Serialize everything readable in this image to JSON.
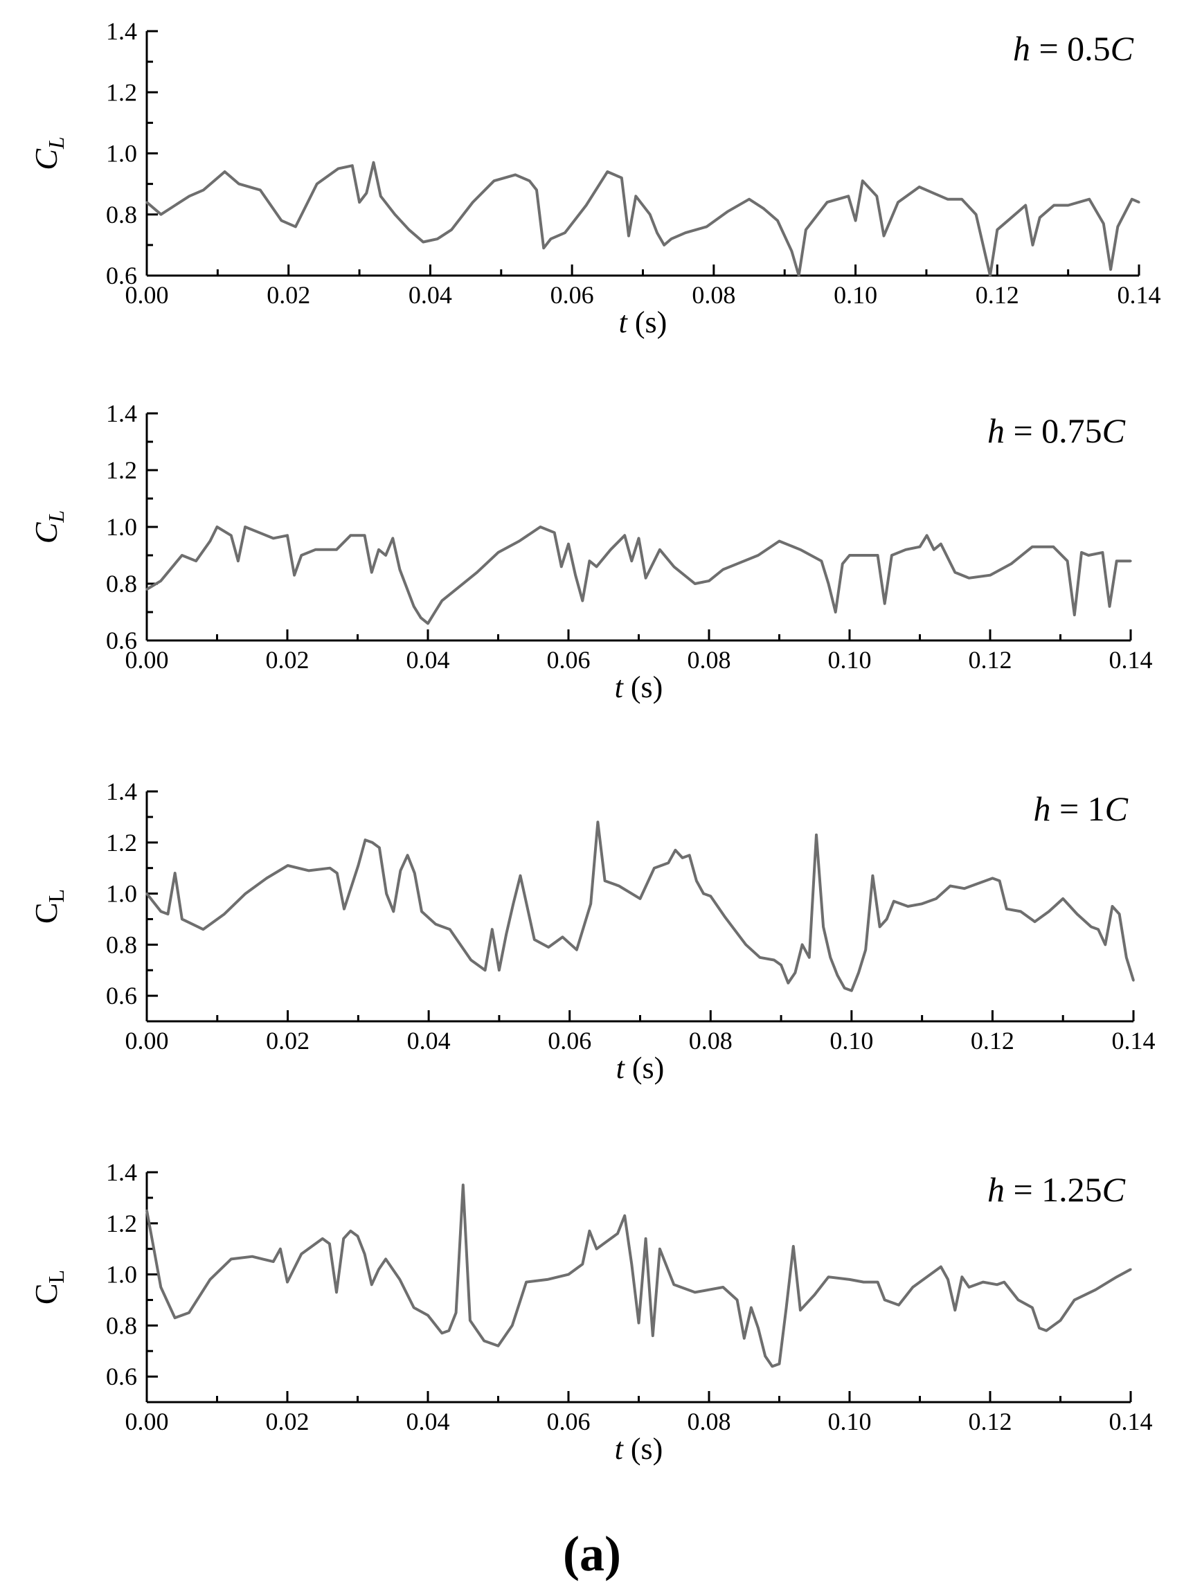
{
  "figure": {
    "panel_label": "(a)",
    "line_color": "#6e6e6e",
    "axis_color": "#000000",
    "background": "#ffffff"
  },
  "chart_data": [
    {
      "type": "line",
      "title": "",
      "annotation": {
        "parts": [
          {
            "text": "h",
            "italic": true
          },
          {
            "text": " = 0.5",
            "italic": false
          },
          {
            "text": "C",
            "italic": true
          }
        ],
        "placement": "top-right"
      },
      "ylabel": {
        "main": "C",
        "sub": "L",
        "italic": true
      },
      "xlabel": {
        "main": "t",
        "rest": " (s)"
      },
      "xlim": [
        0,
        0.14
      ],
      "ylim": [
        0.6,
        1.4
      ],
      "xticks": [
        0.0,
        0.02,
        0.04,
        0.06,
        0.08,
        0.1,
        0.12,
        0.14
      ],
      "xtick_labels": [
        "0.00",
        "0.02",
        "0.04",
        "0.06",
        "0.08",
        "0.10",
        "0.12",
        "0.14"
      ],
      "yticks": [
        0.6,
        0.8,
        1.0,
        1.2,
        1.4
      ],
      "ytick_labels": [
        "0.6",
        "0.8",
        "1.0",
        "1.2",
        "1.4"
      ],
      "grid": false,
      "series": [
        {
          "x": [
            0.0,
            0.002,
            0.004,
            0.006,
            0.008,
            0.011,
            0.013,
            0.016,
            0.019,
            0.021,
            0.024,
            0.027,
            0.029,
            0.03,
            0.031,
            0.032,
            0.033,
            0.035,
            0.037,
            0.039,
            0.041,
            0.043,
            0.046,
            0.049,
            0.052,
            0.054,
            0.055,
            0.056,
            0.057,
            0.059,
            0.062,
            0.065,
            0.067,
            0.068,
            0.069,
            0.071,
            0.072,
            0.073,
            0.074,
            0.076,
            0.079,
            0.082,
            0.085,
            0.087,
            0.089,
            0.091,
            0.092,
            0.093,
            0.096,
            0.099,
            0.1,
            0.101,
            0.103,
            0.104,
            0.106,
            0.109,
            0.111,
            0.113,
            0.115,
            0.117,
            0.119,
            0.12,
            0.122,
            0.124,
            0.125,
            0.126,
            0.128,
            0.13,
            0.133,
            0.135,
            0.136,
            0.137,
            0.139,
            0.14
          ],
          "y": [
            0.84,
            0.8,
            0.83,
            0.86,
            0.88,
            0.94,
            0.9,
            0.88,
            0.78,
            0.76,
            0.9,
            0.95,
            0.96,
            0.84,
            0.87,
            0.97,
            0.86,
            0.8,
            0.75,
            0.71,
            0.72,
            0.75,
            0.84,
            0.91,
            0.93,
            0.91,
            0.88,
            0.69,
            0.72,
            0.74,
            0.83,
            0.94,
            0.92,
            0.73,
            0.86,
            0.8,
            0.74,
            0.7,
            0.72,
            0.74,
            0.76,
            0.81,
            0.85,
            0.82,
            0.78,
            0.68,
            0.6,
            0.75,
            0.84,
            0.86,
            0.78,
            0.91,
            0.86,
            0.73,
            0.84,
            0.89,
            0.87,
            0.85,
            0.85,
            0.8,
            0.6,
            0.75,
            0.79,
            0.83,
            0.7,
            0.79,
            0.83,
            0.83,
            0.85,
            0.77,
            0.62,
            0.76,
            0.85,
            0.84
          ]
        }
      ]
    },
    {
      "type": "line",
      "title": "",
      "annotation": {
        "parts": [
          {
            "text": "h",
            "italic": true
          },
          {
            "text": " = 0.75",
            "italic": false
          },
          {
            "text": "C",
            "italic": true
          }
        ],
        "placement": "top-right"
      },
      "ylabel": {
        "main": "C",
        "sub": "L",
        "italic": true
      },
      "xlabel": {
        "main": "t",
        "rest": " (s)"
      },
      "xlim": [
        0,
        0.14
      ],
      "ylim": [
        0.6,
        1.4
      ],
      "xticks": [
        0.0,
        0.02,
        0.04,
        0.06,
        0.08,
        0.1,
        0.12,
        0.14
      ],
      "xtick_labels": [
        "0.00",
        "0.02",
        "0.04",
        "0.06",
        "0.08",
        "0.10",
        "0.12",
        "0.14"
      ],
      "yticks": [
        0.6,
        0.8,
        1.0,
        1.2,
        1.4
      ],
      "ytick_labels": [
        "0.6",
        "0.8",
        "1.0",
        "1.2",
        "1.4"
      ],
      "grid": false,
      "series": [
        {
          "x": [
            0.0,
            0.002,
            0.005,
            0.007,
            0.009,
            0.01,
            0.012,
            0.013,
            0.014,
            0.016,
            0.018,
            0.02,
            0.021,
            0.022,
            0.024,
            0.027,
            0.029,
            0.031,
            0.032,
            0.033,
            0.034,
            0.035,
            0.036,
            0.038,
            0.039,
            0.04,
            0.041,
            0.042,
            0.044,
            0.047,
            0.05,
            0.053,
            0.056,
            0.058,
            0.059,
            0.06,
            0.061,
            0.062,
            0.063,
            0.064,
            0.066,
            0.068,
            0.069,
            0.07,
            0.071,
            0.073,
            0.075,
            0.078,
            0.08,
            0.082,
            0.084,
            0.087,
            0.09,
            0.093,
            0.096,
            0.097,
            0.098,
            0.099,
            0.1,
            0.102,
            0.104,
            0.105,
            0.106,
            0.108,
            0.11,
            0.111,
            0.112,
            0.113,
            0.115,
            0.117,
            0.12,
            0.123,
            0.126,
            0.129,
            0.131,
            0.132,
            0.133,
            0.134,
            0.136,
            0.137,
            0.138,
            0.14
          ],
          "y": [
            0.78,
            0.81,
            0.9,
            0.88,
            0.95,
            1.0,
            0.97,
            0.88,
            1.0,
            0.98,
            0.96,
            0.97,
            0.83,
            0.9,
            0.92,
            0.92,
            0.97,
            0.97,
            0.84,
            0.92,
            0.9,
            0.96,
            0.85,
            0.72,
            0.68,
            0.66,
            0.7,
            0.74,
            0.78,
            0.84,
            0.91,
            0.95,
            1.0,
            0.98,
            0.86,
            0.94,
            0.83,
            0.74,
            0.88,
            0.86,
            0.92,
            0.97,
            0.88,
            0.96,
            0.82,
            0.92,
            0.86,
            0.8,
            0.81,
            0.85,
            0.87,
            0.9,
            0.95,
            0.92,
            0.88,
            0.8,
            0.7,
            0.87,
            0.9,
            0.9,
            0.9,
            0.73,
            0.9,
            0.92,
            0.93,
            0.97,
            0.92,
            0.94,
            0.84,
            0.82,
            0.83,
            0.87,
            0.93,
            0.93,
            0.88,
            0.69,
            0.91,
            0.9,
            0.91,
            0.72,
            0.88,
            0.88
          ]
        }
      ]
    },
    {
      "type": "line",
      "title": "",
      "annotation": {
        "parts": [
          {
            "text": "h",
            "italic": true
          },
          {
            "text": " = 1",
            "italic": false
          },
          {
            "text": "C",
            "italic": true
          }
        ],
        "placement": "top-right"
      },
      "ylabel": {
        "main": "C",
        "sub": "L",
        "italic": false
      },
      "xlabel": {
        "main": "t",
        "rest": " (s)"
      },
      "xlim": [
        0,
        0.14
      ],
      "ylim": [
        0.5,
        1.4
      ],
      "xticks": [
        0.0,
        0.02,
        0.04,
        0.06,
        0.08,
        0.1,
        0.12,
        0.14
      ],
      "xtick_labels": [
        "0.00",
        "0.02",
        "0.04",
        "0.06",
        "0.08",
        "0.10",
        "0.12",
        "0.14"
      ],
      "yticks": [
        0.6,
        0.8,
        1.0,
        1.2,
        1.4
      ],
      "ytick_labels": [
        "0.6",
        "0.8",
        "1.0",
        "1.2",
        "1.4"
      ],
      "grid": false,
      "series": [
        {
          "x": [
            0.0,
            0.002,
            0.003,
            0.004,
            0.005,
            0.008,
            0.011,
            0.014,
            0.017,
            0.02,
            0.023,
            0.026,
            0.027,
            0.028,
            0.03,
            0.031,
            0.032,
            0.033,
            0.034,
            0.035,
            0.036,
            0.037,
            0.038,
            0.039,
            0.041,
            0.043,
            0.046,
            0.048,
            0.049,
            0.05,
            0.051,
            0.052,
            0.053,
            0.055,
            0.057,
            0.059,
            0.061,
            0.063,
            0.064,
            0.065,
            0.067,
            0.07,
            0.072,
            0.074,
            0.075,
            0.076,
            0.077,
            0.078,
            0.079,
            0.08,
            0.082,
            0.085,
            0.087,
            0.089,
            0.09,
            0.091,
            0.092,
            0.093,
            0.094,
            0.095,
            0.096,
            0.097,
            0.098,
            0.099,
            0.1,
            0.101,
            0.102,
            0.103,
            0.104,
            0.105,
            0.106,
            0.108,
            0.11,
            0.112,
            0.114,
            0.116,
            0.118,
            0.12,
            0.121,
            0.122,
            0.124,
            0.126,
            0.128,
            0.13,
            0.132,
            0.134,
            0.135,
            0.136,
            0.137,
            0.138,
            0.139,
            0.14
          ],
          "y": [
            1.0,
            0.93,
            0.92,
            1.08,
            0.9,
            0.86,
            0.92,
            1.0,
            1.06,
            1.11,
            1.09,
            1.1,
            1.08,
            0.94,
            1.11,
            1.21,
            1.2,
            1.18,
            1.0,
            0.93,
            1.09,
            1.15,
            1.08,
            0.93,
            0.88,
            0.86,
            0.74,
            0.7,
            0.86,
            0.7,
            0.84,
            0.96,
            1.07,
            0.82,
            0.79,
            0.83,
            0.78,
            0.96,
            1.28,
            1.05,
            1.03,
            0.98,
            1.1,
            1.12,
            1.17,
            1.14,
            1.15,
            1.05,
            1.0,
            0.99,
            0.91,
            0.8,
            0.75,
            0.74,
            0.72,
            0.65,
            0.69,
            0.8,
            0.75,
            1.23,
            0.87,
            0.75,
            0.68,
            0.63,
            0.62,
            0.69,
            0.78,
            1.07,
            0.87,
            0.9,
            0.97,
            0.95,
            0.96,
            0.98,
            1.03,
            1.02,
            1.04,
            1.06,
            1.05,
            0.94,
            0.93,
            0.89,
            0.93,
            0.98,
            0.92,
            0.87,
            0.86,
            0.8,
            0.95,
            0.92,
            0.75,
            0.66
          ]
        }
      ]
    },
    {
      "type": "line",
      "title": "",
      "annotation": {
        "parts": [
          {
            "text": "h",
            "italic": true
          },
          {
            "text": " = 1.25",
            "italic": false
          },
          {
            "text": "C",
            "italic": true
          }
        ],
        "placement": "top-right"
      },
      "ylabel": {
        "main": "C",
        "sub": "L",
        "italic": false
      },
      "xlabel": {
        "main": "t",
        "rest": " (s)"
      },
      "xlim": [
        0,
        0.14
      ],
      "ylim": [
        0.5,
        1.4
      ],
      "xticks": [
        0.0,
        0.02,
        0.04,
        0.06,
        0.08,
        0.1,
        0.12,
        0.14
      ],
      "xtick_labels": [
        "0.00",
        "0.02",
        "0.04",
        "0.06",
        "0.08",
        "0.10",
        "0.12",
        "0.14"
      ],
      "yticks": [
        0.6,
        0.8,
        1.0,
        1.2,
        1.4
      ],
      "ytick_labels": [
        "0.6",
        "0.8",
        "1.0",
        "1.2",
        "1.4"
      ],
      "grid": false,
      "series": [
        {
          "x": [
            0.0,
            0.001,
            0.002,
            0.004,
            0.006,
            0.009,
            0.012,
            0.015,
            0.018,
            0.019,
            0.02,
            0.022,
            0.025,
            0.026,
            0.027,
            0.028,
            0.029,
            0.03,
            0.031,
            0.032,
            0.033,
            0.034,
            0.036,
            0.038,
            0.04,
            0.042,
            0.043,
            0.044,
            0.045,
            0.046,
            0.048,
            0.05,
            0.052,
            0.054,
            0.057,
            0.06,
            0.062,
            0.063,
            0.064,
            0.065,
            0.066,
            0.067,
            0.068,
            0.069,
            0.07,
            0.071,
            0.072,
            0.073,
            0.075,
            0.078,
            0.08,
            0.082,
            0.084,
            0.085,
            0.086,
            0.087,
            0.088,
            0.089,
            0.09,
            0.091,
            0.092,
            0.093,
            0.095,
            0.097,
            0.1,
            0.102,
            0.104,
            0.105,
            0.107,
            0.109,
            0.111,
            0.113,
            0.114,
            0.115,
            0.116,
            0.117,
            0.119,
            0.121,
            0.122,
            0.124,
            0.126,
            0.127,
            0.128,
            0.13,
            0.132,
            0.135,
            0.138,
            0.14
          ],
          "y": [
            1.25,
            1.1,
            0.95,
            0.83,
            0.85,
            0.98,
            1.06,
            1.07,
            1.05,
            1.1,
            0.97,
            1.08,
            1.14,
            1.12,
            0.93,
            1.14,
            1.17,
            1.15,
            1.08,
            0.96,
            1.02,
            1.06,
            0.98,
            0.87,
            0.84,
            0.77,
            0.78,
            0.85,
            1.35,
            0.82,
            0.74,
            0.72,
            0.8,
            0.97,
            0.98,
            1.0,
            1.04,
            1.17,
            1.1,
            1.12,
            1.14,
            1.16,
            1.23,
            1.04,
            0.81,
            1.14,
            0.76,
            1.1,
            0.96,
            0.93,
            0.94,
            0.95,
            0.9,
            0.75,
            0.87,
            0.79,
            0.68,
            0.64,
            0.65,
            0.87,
            1.11,
            0.86,
            0.92,
            0.99,
            0.98,
            0.97,
            0.97,
            0.9,
            0.88,
            0.95,
            0.99,
            1.03,
            0.98,
            0.86,
            0.99,
            0.95,
            0.97,
            0.96,
            0.97,
            0.9,
            0.87,
            0.79,
            0.78,
            0.82,
            0.9,
            0.94,
            0.99,
            1.02
          ]
        }
      ]
    }
  ]
}
